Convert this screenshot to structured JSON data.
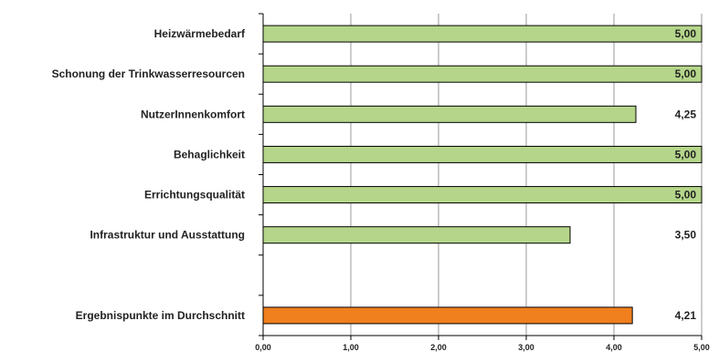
{
  "chart_data": {
    "type": "bar",
    "orientation": "horizontal",
    "title": "",
    "xlabel": "",
    "ylabel": "",
    "xlim": [
      0,
      5
    ],
    "xticks": [
      "0,00",
      "1,00",
      "2,00",
      "3,00",
      "4,00",
      "5,00"
    ],
    "grid": "vertical",
    "legend": "none",
    "categories": [
      "Heizwärmebedarf",
      "Schonung der Trinkwasserresourcen",
      "NutzerInnenkomfort",
      "Behaglichkeit",
      "Errichtungsqualität",
      "Infrastruktur und Ausstattung",
      "",
      "Ergebnispunkte im Durchschnitt"
    ],
    "values": [
      5.0,
      5.0,
      4.25,
      5.0,
      5.0,
      3.5,
      null,
      4.21
    ],
    "value_labels": [
      "5,00",
      "5,00",
      "4,25",
      "5,00",
      "5,00",
      "3,50",
      "",
      "4,21"
    ],
    "colors": [
      "#b5d68a",
      "#b5d68a",
      "#b5d68a",
      "#b5d68a",
      "#b5d68a",
      "#b5d68a",
      "#b5d68a",
      "#f07f1e"
    ]
  }
}
